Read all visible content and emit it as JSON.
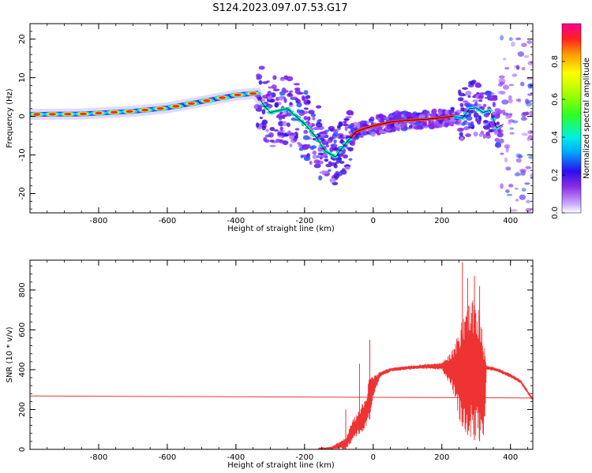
{
  "title": "S124.2023.097.07.53.G17",
  "chart_data": [
    {
      "type": "heatmap",
      "xlabel": "Height of straight line (km)",
      "ylabel": "Frequency (Hz)",
      "xlim": [
        -1000,
        465
      ],
      "ylim": [
        -25,
        24
      ],
      "xticks": [
        -800,
        -600,
        -400,
        -200,
        0,
        200,
        400
      ],
      "yticks": [
        -20,
        -10,
        0,
        10,
        20
      ],
      "colorbar": {
        "label": "Normalized spectral amplitude",
        "ticks": [
          0.0,
          0.2,
          0.4,
          0.6,
          0.8
        ],
        "tick_labels": [
          "0.0",
          "0.2",
          "0.4",
          "0.6",
          "0.8"
        ],
        "colormap": "rainbow (purple to magenta)",
        "range": [
          0,
          1
        ]
      },
      "centerline": {
        "x": [
          -1000,
          -850,
          -700,
          -600,
          -500,
          -430,
          -400,
          -340,
          -320,
          -300,
          -250,
          -200,
          -170,
          -140,
          -110,
          -80,
          -50,
          -20,
          0,
          50,
          100,
          150,
          200,
          230,
          260,
          280,
          300,
          320,
          340,
          360,
          380
        ],
        "y": [
          0.5,
          0.6,
          1.3,
          2.2,
          3.8,
          5.0,
          5.5,
          6.0,
          3.0,
          1.0,
          2.0,
          -2.0,
          -5.0,
          -9.0,
          -10.5,
          -7.0,
          -4.0,
          -3.0,
          -2.5,
          -1.5,
          -1.0,
          -0.8,
          -0.4,
          0.0,
          -0.5,
          2.0,
          2.2,
          1.0,
          1.5,
          -3.0,
          -2.0
        ]
      },
      "grid": false
    },
    {
      "type": "line",
      "xlabel": "Height of straight line (km)",
      "ylabel": "SNR (10 * v/v)",
      "xlim": [
        -1000,
        465
      ],
      "ylim": [
        0,
        950
      ],
      "xticks": [
        -800,
        -600,
        -400,
        -200,
        0,
        200,
        400
      ],
      "yticks": [
        0,
        200,
        400,
        600,
        800
      ],
      "color": "#ee3333",
      "series": [
        {
          "style": "trend line",
          "x": [
            -1000,
            465
          ],
          "y": [
            268,
            258
          ]
        },
        {
          "style": "noisy SNR envelope",
          "x": [
            -160,
            -120,
            -80,
            -60,
            -40,
            -20,
            -10,
            0,
            20,
            50,
            100,
            150,
            200,
            230,
            250,
            270,
            290,
            310,
            325,
            330,
            360,
            400,
            430,
            465
          ],
          "y": [
            5,
            15,
            60,
            150,
            200,
            280,
            380,
            370,
            390,
            410,
            420,
            428,
            435,
            500,
            620,
            700,
            760,
            700,
            500,
            420,
            410,
            380,
            350,
            260
          ],
          "lower": [
            0,
            0,
            0,
            40,
            80,
            100,
            150,
            260,
            360,
            390,
            400,
            405,
            400,
            300,
            150,
            80,
            50,
            40,
            60,
            400,
            390,
            360,
            330,
            240
          ],
          "spikes": [
            {
              "x": -10,
              "y": 550
            },
            {
              "x": -40,
              "y": 430
            },
            {
              "x": -80,
              "y": 200
            },
            {
              "x": 260,
              "y": 940
            },
            {
              "x": 275,
              "y": 860
            },
            {
              "x": 295,
              "y": 870
            },
            {
              "x": 310,
              "y": 820
            }
          ]
        }
      ],
      "grid": false
    }
  ]
}
